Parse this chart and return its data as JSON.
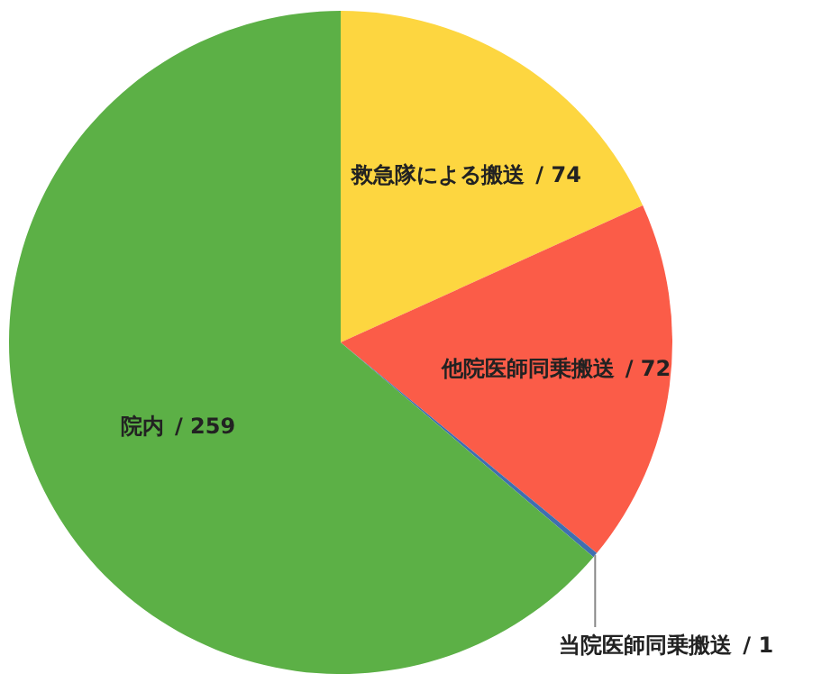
{
  "chart_data": {
    "type": "pie",
    "categories": [
      "救急隊による搬送",
      "他院医師同乗搬送",
      "当院医師同乗搬送",
      "院内"
    ],
    "values": [
      74,
      72,
      1,
      259
    ],
    "colors": [
      "#fdd640",
      "#fb5c48",
      "#3f6fb0",
      "#5cb046"
    ],
    "value_labels": [
      "/ 74",
      "/ 72",
      "/ 1",
      "/ 259"
    ]
  }
}
